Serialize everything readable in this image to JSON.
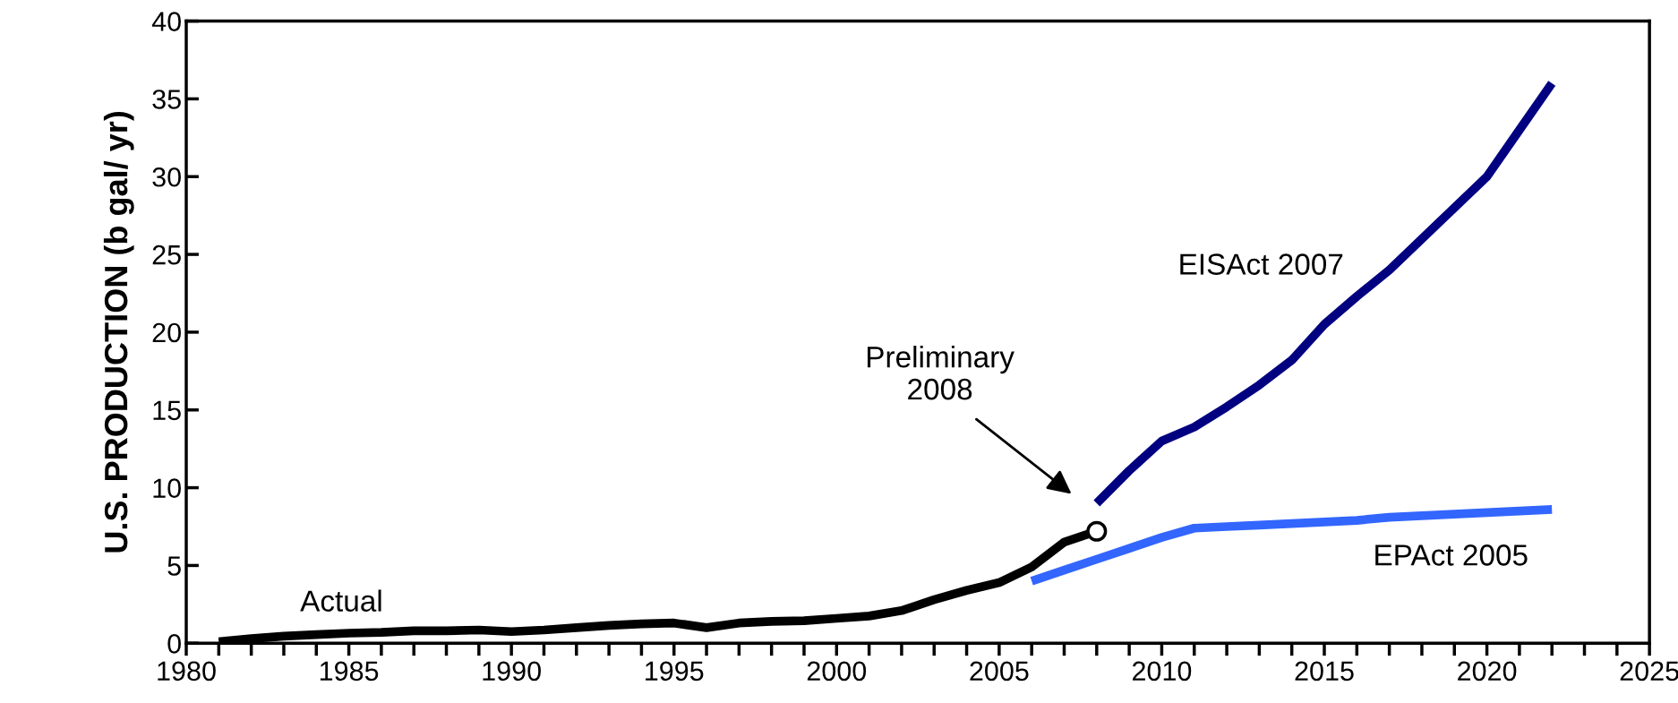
{
  "chart_data": {
    "type": "line",
    "ylabel": "U.S. PRODUCTION (b gal/ yr)",
    "xlim": [
      1980,
      2025
    ],
    "xticks": [
      1980,
      1985,
      1990,
      1995,
      2000,
      2005,
      2010,
      2015,
      2020,
      2025
    ],
    "ylim": [
      0,
      40
    ],
    "yticks": [
      0,
      5,
      10,
      15,
      20,
      25,
      30,
      35,
      40
    ],
    "grid": false,
    "legend": false,
    "marker": "none",
    "line_style": "solid",
    "annotations": [
      "Preliminary\n2008"
    ],
    "series": [
      {
        "name": "Actual",
        "color": "#000000",
        "x": [
          1981,
          1982,
          1983,
          1984,
          1985,
          1986,
          1987,
          1988,
          1989,
          1990,
          1991,
          1992,
          1993,
          1994,
          1995,
          1996,
          1997,
          1998,
          1999,
          2000,
          2001,
          2002,
          2003,
          2004,
          2005,
          2006,
          2007,
          2008
        ],
        "values": [
          0.1,
          0.3,
          0.45,
          0.55,
          0.65,
          0.7,
          0.8,
          0.8,
          0.85,
          0.75,
          0.85,
          1.0,
          1.15,
          1.25,
          1.3,
          1.0,
          1.3,
          1.4,
          1.45,
          1.6,
          1.75,
          2.1,
          2.8,
          3.4,
          3.9,
          4.9,
          6.5,
          7.2
        ]
      },
      {
        "name": "EISAct 2007",
        "color": "#000080",
        "x": [
          2008,
          2009,
          2010,
          2011,
          2012,
          2013,
          2014,
          2015,
          2016,
          2017,
          2018,
          2019,
          2020,
          2021,
          2022
        ],
        "values": [
          9.0,
          11.1,
          13.0,
          13.9,
          15.2,
          16.6,
          18.2,
          20.5,
          22.3,
          24.0,
          26.0,
          28.0,
          30.0,
          33.0,
          36.0
        ]
      },
      {
        "name": "EPAct 2005",
        "color": "#3366ff",
        "x": [
          2006,
          2007,
          2008,
          2009,
          2010,
          2011,
          2012,
          2013,
          2014,
          2015,
          2016,
          2017,
          2018,
          2019,
          2020,
          2021,
          2022
        ],
        "values": [
          4.0,
          4.7,
          5.4,
          6.1,
          6.8,
          7.4,
          7.5,
          7.6,
          7.7,
          7.8,
          7.9,
          8.1,
          8.2,
          8.3,
          8.4,
          8.5,
          8.6
        ]
      },
      {
        "type": "scatter",
        "marker": "circle",
        "color": "#000000",
        "x": [
          2008
        ],
        "values": [
          7.2
        ]
      }
    ]
  }
}
